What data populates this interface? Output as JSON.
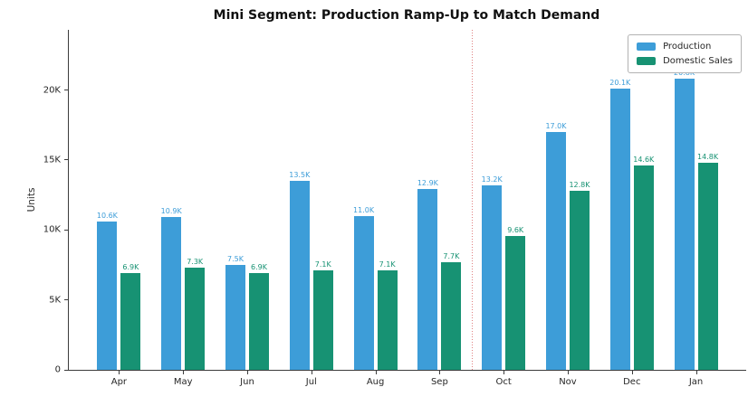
{
  "chart_data": {
    "type": "bar",
    "title": "Mini Segment: Production Ramp-Up to Match Demand",
    "xlabel": "",
    "ylabel": "Units",
    "categories": [
      "Apr",
      "May",
      "Jun",
      "Jul",
      "Aug",
      "Sep",
      "Oct",
      "Nov",
      "Dec",
      "Jan"
    ],
    "series": [
      {
        "name": "Production",
        "color": "#3d9dd8",
        "values": [
          10600,
          10900,
          7500,
          13500,
          11000,
          12900,
          13200,
          17000,
          20100,
          20800
        ],
        "labels": [
          "10.6K",
          "10.9K",
          "7.5K",
          "13.5K",
          "11.0K",
          "12.9K",
          "13.2K",
          "17.0K",
          "20.1K",
          "20.8K"
        ]
      },
      {
        "name": "Domestic Sales",
        "color": "#179273",
        "values": [
          6900,
          7300,
          6900,
          7100,
          7100,
          7700,
          9600,
          12800,
          14600,
          14800
        ],
        "labels": [
          "6.9K",
          "7.3K",
          "6.9K",
          "7.1K",
          "7.1K",
          "7.7K",
          "9.6K",
          "12.8K",
          "14.6K",
          "14.8K"
        ]
      }
    ],
    "yticks": [
      {
        "value": 0,
        "label": "0"
      },
      {
        "value": 5000,
        "label": "5K"
      },
      {
        "value": 10000,
        "label": "10K"
      },
      {
        "value": 15000,
        "label": "15K"
      },
      {
        "value": 20000,
        "label": "20K"
      }
    ],
    "ylim": [
      0,
      24300
    ],
    "grid": false,
    "legend_position": "upper-right",
    "divider": {
      "after_category": "Sep",
      "color": "#e08080",
      "style": "dotted"
    }
  }
}
